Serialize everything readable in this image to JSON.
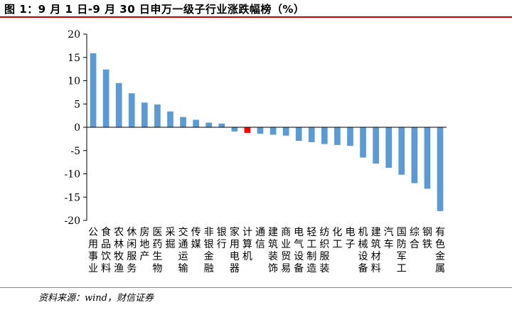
{
  "header": {
    "title": "图 1：9 月 1 日-9 月 30 日申万一级子行业涨跌幅榜（%）"
  },
  "footer": {
    "source": "资料来源：wind，财信证券"
  },
  "colors": {
    "bar": "#5b9bd5",
    "highlight": "#ff0000",
    "axis": "#000000",
    "title_rule": "#c00000"
  },
  "chart_data": {
    "type": "bar",
    "title": "9 月 1 日-9 月 30 日申万一级子行业涨跌幅榜（%）",
    "xlabel": "",
    "ylabel": "",
    "ylim": [
      -20,
      20
    ],
    "yticks": [
      20,
      15,
      10,
      5,
      0,
      -5,
      -10,
      -15,
      -20
    ],
    "grid": false,
    "legend": "none",
    "highlight_index": 12,
    "categories": [
      "公用事业",
      "食品饮料",
      "农林牧渔",
      "休闲服务",
      "房地产",
      "医药生物",
      "采掘",
      "交通运输",
      "传媒",
      "非银金融",
      "银行",
      "家用电器",
      "计算机",
      "通信",
      "建筑装饰",
      "商业贸易",
      "电气设备",
      "轻工制造",
      "纺织服装",
      "化工",
      "电子",
      "机械设备",
      "建筑材料",
      "汽车",
      "国防军工",
      "综合",
      "钢铁",
      "有色金属"
    ],
    "values": [
      15.9,
      12.4,
      9.5,
      7.3,
      5.3,
      4.9,
      3.4,
      2.2,
      1.6,
      1.0,
      0.8,
      -0.9,
      -1.2,
      -1.4,
      -1.6,
      -1.8,
      -2.9,
      -3.2,
      -3.6,
      -3.8,
      -4.0,
      -6.5,
      -7.8,
      -8.7,
      -10.2,
      -12.0,
      -13.2,
      -18.0
    ]
  }
}
